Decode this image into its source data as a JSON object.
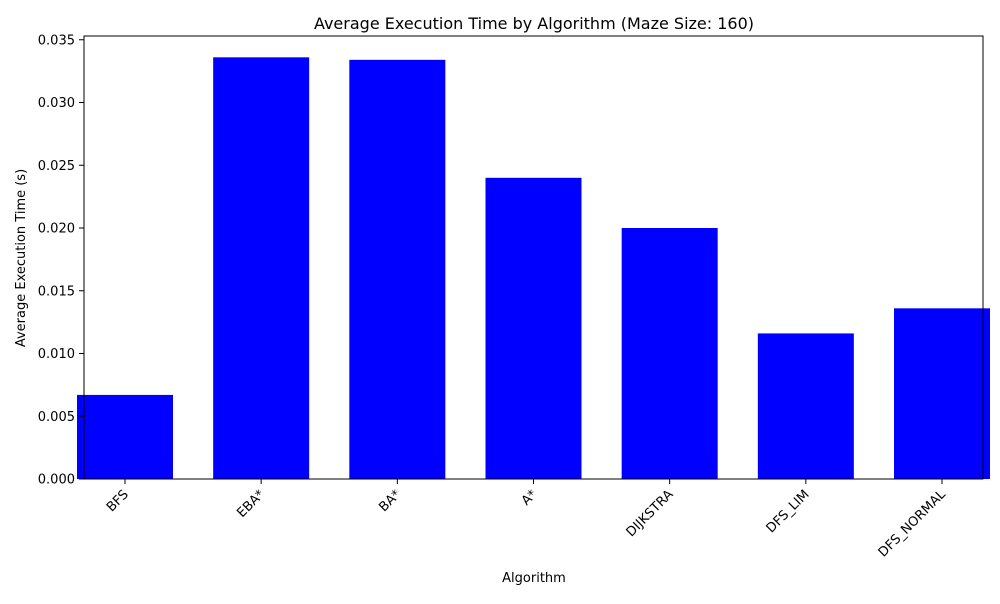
{
  "chart_data": {
    "type": "bar",
    "title": "Average Execution Time by Algorithm (Maze Size: 160)",
    "xlabel": "Algorithm",
    "ylabel": "Average Execution Time (s)",
    "categories": [
      "BFS",
      "EBA*",
      "BA*",
      "A*",
      "DIJKSTRA",
      "DFS_LIM",
      "DFS_NORMAL"
    ],
    "values": [
      0.0067,
      0.0336,
      0.0334,
      0.024,
      0.02,
      0.0116,
      0.0136
    ],
    "ylim": [
      0,
      0.0353
    ],
    "yticks": [
      "0.000",
      "0.005",
      "0.010",
      "0.015",
      "0.020",
      "0.025",
      "0.030",
      "0.035"
    ],
    "bar_color": "#0000ff",
    "grid": false,
    "xtick_rotation": "45 degrees"
  }
}
